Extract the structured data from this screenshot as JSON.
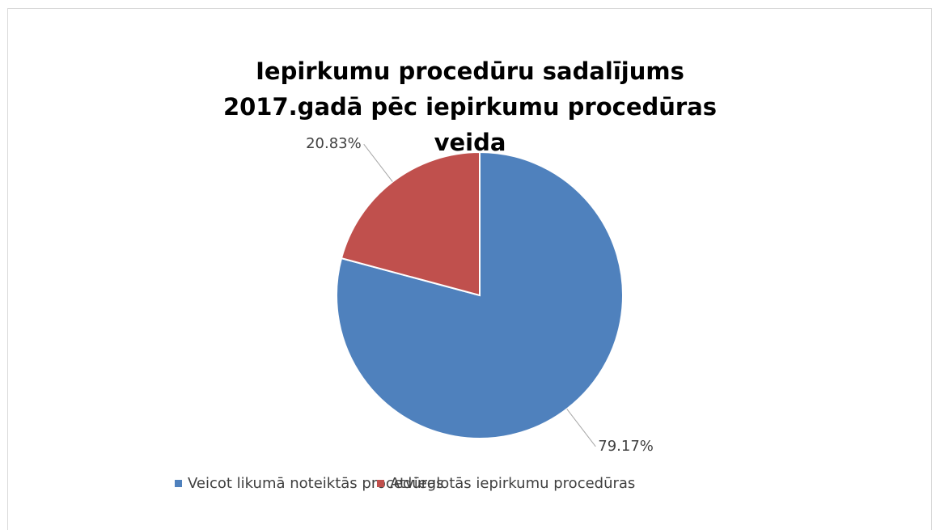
{
  "chart_data": {
    "type": "pie",
    "title": "Iepirkumu procedūru sadalījums 2017.gadā pēc iepirkumu procedūras veida",
    "categories": [
      "Veicot likumā noteiktās procedūras",
      "Atvieglotās iepirkumu procedūras"
    ],
    "values": [
      79.17,
      20.83
    ],
    "value_labels": [
      "79.17%",
      "20.83%"
    ],
    "colors": [
      "#4f81bd",
      "#c0504d"
    ],
    "legend": "bottom"
  }
}
